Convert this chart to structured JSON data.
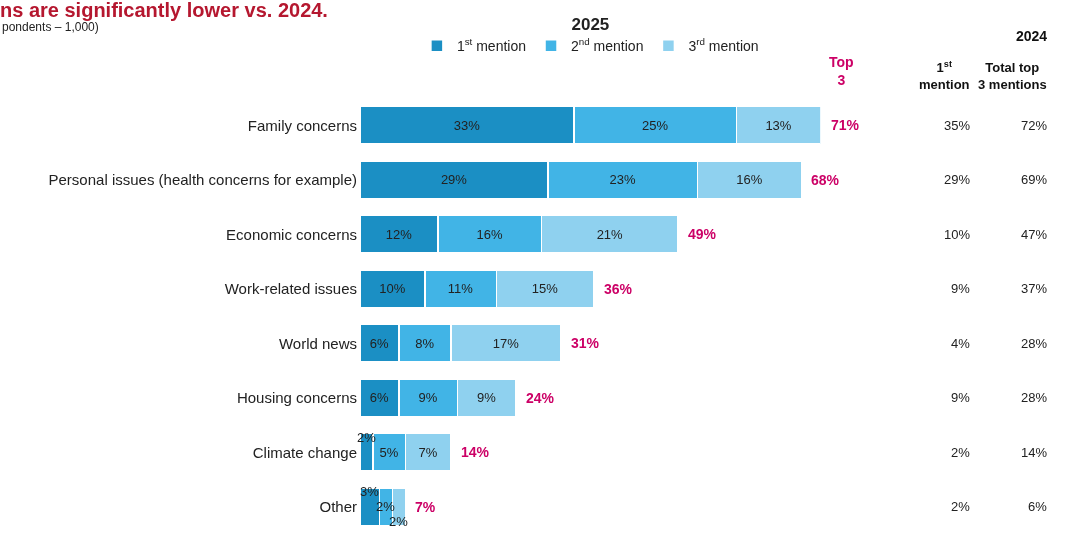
{
  "chart_data": {
    "type": "bar",
    "orientation": "horizontal",
    "stacked": true,
    "title": "ns are significantly lower vs. 2024.",
    "subtitle": "pondents – 1,000)",
    "legend_title": "2025",
    "legend": "top",
    "data_labels": true,
    "categories": [
      "Family concerns",
      "Personal issues (health concerns for example)",
      "Economic concerns",
      "Work-related issues",
      "World news",
      "Housing concerns",
      "Climate change",
      "Other"
    ],
    "series": [
      {
        "name": "1$^{st}$ mention",
        "color": "#1b8fc4",
        "values": [
          33,
          29,
          12,
          10,
          6,
          6,
          2,
          3
        ],
        "value_labels": [
          "33%",
          "29%",
          "12%",
          "10%",
          "6%",
          "6%",
          "2%",
          "3%"
        ]
      },
      {
        "name": "2$^{nd}$ mention",
        "color": "#41b4e6",
        "values": [
          25,
          23,
          16,
          11,
          8,
          9,
          5,
          2
        ],
        "value_labels": [
          "25%",
          "23%",
          "16%",
          "11%",
          "8%",
          "9%",
          "5%",
          "2%"
        ]
      },
      {
        "name": "3$^{rd}$ mention",
        "color": "#8fd1ef",
        "values": [
          13,
          16,
          21,
          15,
          17,
          9,
          7,
          2
        ],
        "value_labels": [
          "13%",
          "16%",
          "21%",
          "15%",
          "17%",
          "9%",
          "7%",
          "2%"
        ]
      }
    ],
    "totals": [
      "71%",
      "68%",
      "49%",
      "36%",
      "31%",
      "24%",
      "14%",
      "7%"
    ],
    "annotations": [
      "Top 3",
      "2024",
      "1$^{st}$ mention",
      "Total top 3 mentions",
      "35%",
      "72%",
      "29%",
      "69%",
      "10%",
      "47%",
      "9%",
      "37%",
      "4%",
      "28%",
      "9%",
      "28%",
      "2%",
      "14%",
      "2%",
      "6%"
    ]
  }
}
